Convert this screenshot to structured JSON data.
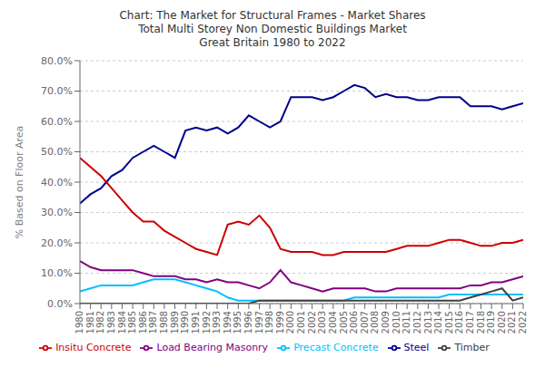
{
  "chart_data": {
    "type": "line",
    "title": "Chart: The Market for Structural Frames - Market Shares\nTotal Multi Storey Non Domestic Buildings Market\nGreat Britain 1980 to 2022",
    "ylabel": "% Based on Floor Area",
    "x": [
      1980,
      1981,
      1982,
      1983,
      1984,
      1985,
      1986,
      1987,
      1988,
      1989,
      1990,
      1991,
      1992,
      1993,
      1994,
      1995,
      1996,
      1997,
      1998,
      1999,
      2000,
      2001,
      2002,
      2003,
      2004,
      2005,
      2006,
      2007,
      2008,
      2009,
      2010,
      2011,
      2012,
      2013,
      2014,
      2015,
      2016,
      2017,
      2018,
      2019,
      2020,
      2021,
      2022
    ],
    "series": [
      {
        "name": "Steel",
        "color": "#00008B",
        "values": [
          33,
          36,
          38,
          42,
          44,
          48,
          50,
          52,
          50,
          48,
          57,
          58,
          57,
          58,
          56,
          58,
          62,
          60,
          58,
          60,
          68,
          68,
          68,
          67,
          68,
          70,
          72,
          71,
          68,
          69,
          68,
          68,
          67,
          67,
          68,
          68,
          68,
          65,
          65,
          65,
          64,
          65,
          66
        ]
      },
      {
        "name": "Insitu Concrete",
        "color": "#CC0000",
        "values": [
          48,
          45,
          42,
          38,
          34,
          30,
          27,
          27,
          24,
          22,
          20,
          18,
          17,
          16,
          26,
          27,
          26,
          29,
          25,
          18,
          17,
          17,
          17,
          16,
          16,
          17,
          17,
          17,
          17,
          17,
          18,
          19,
          19,
          19,
          20,
          21,
          21,
          20,
          19,
          19,
          20,
          20,
          21
        ]
      },
      {
        "name": "Precast Concrete",
        "color": "#00BFFF",
        "values": [
          4,
          5,
          6,
          6,
          6,
          6,
          7,
          8,
          8,
          8,
          7,
          6,
          5,
          4,
          2,
          1,
          1,
          1,
          1,
          1,
          1,
          1,
          1,
          1,
          1,
          1,
          2,
          2,
          2,
          2,
          2,
          2,
          2,
          2,
          2,
          3,
          3,
          3,
          3,
          3,
          3,
          3,
          3
        ]
      },
      {
        "name": "Load Bearing Masonry",
        "color": "#800080",
        "values": [
          14,
          12,
          11,
          11,
          11,
          11,
          10,
          9,
          9,
          9,
          8,
          8,
          7,
          8,
          7,
          7,
          6,
          5,
          7,
          11,
          7,
          6,
          5,
          4,
          5,
          5,
          5,
          5,
          4,
          4,
          5,
          5,
          5,
          5,
          5,
          5,
          5,
          6,
          6,
          7,
          7,
          8,
          9
        ]
      },
      {
        "name": "Timber",
        "color": "#404040",
        "values": [
          0,
          0,
          0,
          0,
          0,
          0,
          0,
          0,
          0,
          0,
          0,
          0,
          0,
          0,
          0,
          0,
          0,
          1,
          1,
          1,
          1,
          1,
          1,
          1,
          1,
          1,
          1,
          1,
          1,
          1,
          1,
          1,
          1,
          1,
          1,
          1,
          1,
          2,
          3,
          4,
          5,
          1,
          2
        ]
      }
    ],
    "xlim": [
      1980,
      2022
    ],
    "xticks": [
      1980,
      1981,
      1982,
      1983,
      1984,
      1985,
      1986,
      1987,
      1988,
      1989,
      1990,
      1991,
      1992,
      1993,
      1994,
      1995,
      1996,
      1997,
      1998,
      1999,
      2000,
      2001,
      2002,
      2003,
      2004,
      2005,
      2006,
      2007,
      2008,
      2009,
      2010,
      2011,
      2012,
      2013,
      2014,
      2015,
      2016,
      2017,
      2018,
      2019,
      2020,
      2021,
      2022
    ],
    "ylim": [
      0,
      80
    ],
    "yticks": [
      {
        "value": 0,
        "label": "0.0%"
      },
      {
        "value": 10,
        "label": "10.0%"
      },
      {
        "value": 20,
        "label": "20.0%"
      },
      {
        "value": 30,
        "label": "30.0%"
      },
      {
        "value": 40,
        "label": "40.0%"
      },
      {
        "value": 50,
        "label": "50.0%"
      },
      {
        "value": 60,
        "label": "60.0%"
      },
      {
        "value": 70,
        "label": "70.0%"
      },
      {
        "value": 80,
        "label": "80.0%"
      }
    ],
    "grid": true,
    "legend": "bottom"
  }
}
